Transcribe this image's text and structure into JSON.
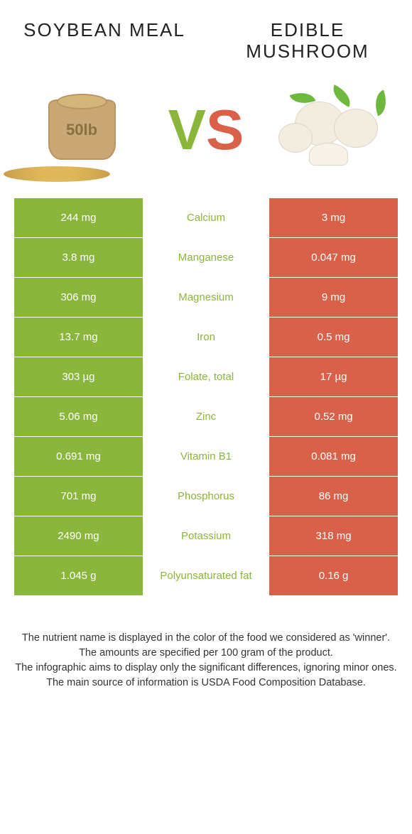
{
  "left_food": "Soybean meal",
  "right_food": "Edible mushroom",
  "vs_v": "V",
  "vs_s": "S",
  "sack_label": "50lb",
  "colors": {
    "green": "#8bb63c",
    "red": "#d9614a",
    "white": "#ffffff"
  },
  "rows": [
    {
      "nutrient": "Calcium",
      "left": "244 mg",
      "right": "3 mg",
      "winner": "left"
    },
    {
      "nutrient": "Manganese",
      "left": "3.8 mg",
      "right": "0.047 mg",
      "winner": "left"
    },
    {
      "nutrient": "Magnesium",
      "left": "306 mg",
      "right": "9 mg",
      "winner": "left"
    },
    {
      "nutrient": "Iron",
      "left": "13.7 mg",
      "right": "0.5 mg",
      "winner": "left"
    },
    {
      "nutrient": "Folate, total",
      "left": "303 µg",
      "right": "17 µg",
      "winner": "left"
    },
    {
      "nutrient": "Zinc",
      "left": "5.06 mg",
      "right": "0.52 mg",
      "winner": "left"
    },
    {
      "nutrient": "Vitamin B1",
      "left": "0.691 mg",
      "right": "0.081 mg",
      "winner": "left"
    },
    {
      "nutrient": "Phosphorus",
      "left": "701 mg",
      "right": "86 mg",
      "winner": "left"
    },
    {
      "nutrient": "Potassium",
      "left": "2490 mg",
      "right": "318 mg",
      "winner": "left"
    },
    {
      "nutrient": "Polyunsaturated fat",
      "left": "1.045 g",
      "right": "0.16 g",
      "winner": "left"
    }
  ],
  "footer": {
    "line1": "The nutrient name is displayed in the color of the food we considered as 'winner'.",
    "line2": "The amounts are specified per 100 gram of the product.",
    "line3": "The infographic aims to display only the significant differences, ignoring minor ones.",
    "line4": "The main source of information is USDA Food Composition Database."
  }
}
